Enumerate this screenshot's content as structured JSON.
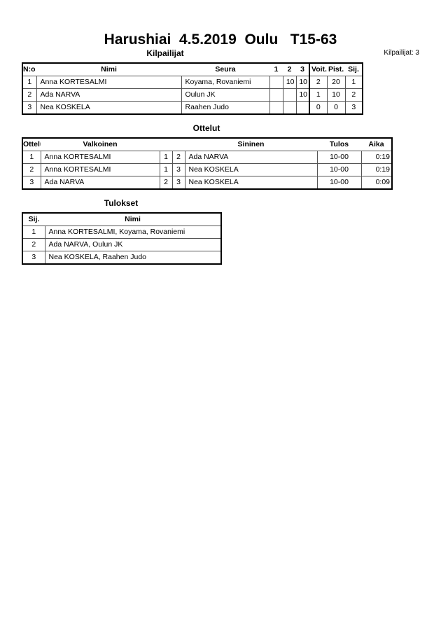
{
  "title": "Harushiai  4.5.2019  Oulu   T15-63",
  "competitors": {
    "heading": "Kilpailijat",
    "count_label": "Kilpailijat: 3",
    "columns": [
      "N:o",
      "Nimi",
      "Seura",
      "1",
      "2",
      "3",
      "Voit.",
      "Pist.",
      "Sij."
    ],
    "rows": [
      [
        "1",
        "Anna KORTESALMI",
        "Koyama, Rovaniemi",
        "",
        "10",
        "10",
        "2",
        "20",
        "1"
      ],
      [
        "2",
        "Ada NARVA",
        "Oulun JK",
        "",
        "",
        "10",
        "1",
        "10",
        "2"
      ],
      [
        "3",
        "Nea KOSKELA",
        "Raahen Judo",
        "",
        "",
        "",
        "0",
        "0",
        "3"
      ]
    ]
  },
  "matches": {
    "heading": "Ottelut",
    "columns": [
      "Ottelu",
      "Valkoinen",
      "",
      "",
      "Sininen",
      "Tulos",
      "Aika"
    ],
    "rows": [
      [
        "1",
        "Anna KORTESALMI",
        "1",
        "2",
        "Ada NARVA",
        "10-00",
        "0:19"
      ],
      [
        "2",
        "Anna KORTESALMI",
        "1",
        "3",
        "Nea KOSKELA",
        "10-00",
        "0:19"
      ],
      [
        "3",
        "Ada NARVA",
        "2",
        "3",
        "Nea KOSKELA",
        "10-00",
        "0:09"
      ]
    ]
  },
  "results": {
    "heading": "Tulokset",
    "columns": [
      "Sij.",
      "Nimi"
    ],
    "rows": [
      [
        "1",
        "Anna KORTESALMI, Koyama, Rovaniemi"
      ],
      [
        "2",
        "Ada NARVA, Oulun JK"
      ],
      [
        "3",
        "Nea KOSKELA, Raahen Judo"
      ]
    ]
  }
}
